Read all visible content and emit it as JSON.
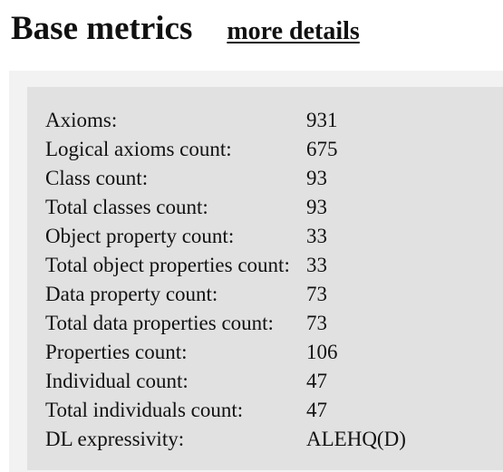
{
  "header": {
    "title": "Base metrics",
    "link_label": "more details"
  },
  "metrics": [
    {
      "label": "Axioms:",
      "value": "931"
    },
    {
      "label": "Logical axioms count:",
      "value": "675"
    },
    {
      "label": "Class count:",
      "value": "93"
    },
    {
      "label": "Total classes count:",
      "value": "93"
    },
    {
      "label": "Object property count:",
      "value": "33"
    },
    {
      "label": "Total object properties count:",
      "value": "33"
    },
    {
      "label": "Data property count:",
      "value": "73"
    },
    {
      "label": "Total data properties count:",
      "value": "73"
    },
    {
      "label": "Properties count:",
      "value": "106"
    },
    {
      "label": "Individual count:",
      "value": "47"
    },
    {
      "label": "Total individuals count:",
      "value": "47"
    },
    {
      "label": "DL expressivity:",
      "value": "ALEHQ(D)"
    }
  ]
}
